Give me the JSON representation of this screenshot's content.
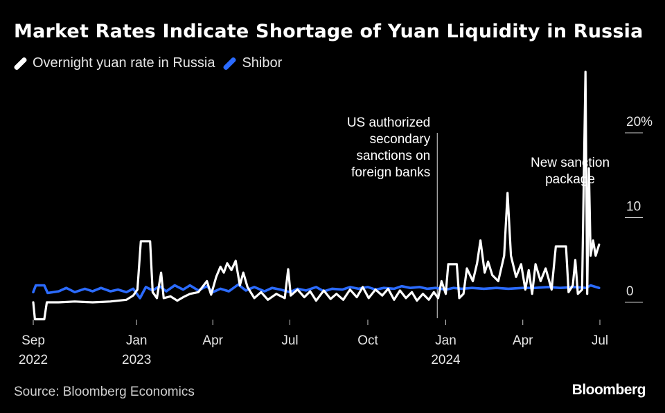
{
  "title": "Market Rates Indicate Shortage of Yuan Liquidity in Russia",
  "source": "Source: Bloomberg Economics",
  "brand": "Bloomberg",
  "colors": {
    "background": "#000000",
    "overnight": "#ffffff",
    "shibor": "#2b6bff",
    "axis": "#cccccc"
  },
  "chart_data": {
    "type": "line",
    "title": "Market Rates Indicate Shortage of Yuan Liquidity in Russia",
    "ylim": [
      -2,
      27
    ],
    "y_ticks": [
      {
        "value": 0,
        "label": "0"
      },
      {
        "value": 10,
        "label": "10"
      },
      {
        "value": 20,
        "label": "20%"
      }
    ],
    "x_ticks": [
      {
        "date": "2022-09-01",
        "label": "Sep",
        "year": "2022"
      },
      {
        "date": "2023-01-01",
        "label": "Jan",
        "year": "2023"
      },
      {
        "date": "2023-04-01",
        "label": "Apr",
        "year": ""
      },
      {
        "date": "2023-07-01",
        "label": "Jul",
        "year": ""
      },
      {
        "date": "2023-10-01",
        "label": "Oct",
        "year": ""
      },
      {
        "date": "2024-01-01",
        "label": "Jan",
        "year": "2024"
      },
      {
        "date": "2024-04-01",
        "label": "Apr",
        "year": ""
      },
      {
        "date": "2024-07-01",
        "label": "Jul",
        "year": ""
      }
    ],
    "xlim": [
      "2022-09-01",
      "2024-07-01"
    ],
    "annotations": [
      {
        "date": "2023-12-22",
        "lines": [
          "US authorized",
          "secondary",
          "sanctions on",
          "foreign banks"
        ],
        "has_line": true
      },
      {
        "date": "2024-06-12",
        "lines": [
          "New sanction",
          "package"
        ],
        "has_line": false
      }
    ],
    "series": [
      {
        "name": "Overnight yuan rate in Russia",
        "color": "#ffffff",
        "points": [
          [
            "2022-09-01",
            0.0
          ],
          [
            "2022-09-03",
            -2.0
          ],
          [
            "2022-09-14",
            -2.0
          ],
          [
            "2022-09-17",
            0.0
          ],
          [
            "2022-10-01",
            0.0
          ],
          [
            "2022-10-20",
            0.1
          ],
          [
            "2022-11-10",
            0.0
          ],
          [
            "2022-12-01",
            0.1
          ],
          [
            "2022-12-20",
            0.3
          ],
          [
            "2022-12-28",
            0.8
          ],
          [
            "2023-01-02",
            1.5
          ],
          [
            "2023-01-06",
            7.2
          ],
          [
            "2023-01-17",
            7.2
          ],
          [
            "2023-01-20",
            1.2
          ],
          [
            "2023-01-25",
            0.5
          ],
          [
            "2023-01-30",
            3.5
          ],
          [
            "2023-02-02",
            0.5
          ],
          [
            "2023-02-10",
            0.7
          ],
          [
            "2023-02-18",
            0.2
          ],
          [
            "2023-02-25",
            0.6
          ],
          [
            "2023-03-05",
            1.0
          ],
          [
            "2023-03-15",
            1.2
          ],
          [
            "2023-03-25",
            2.5
          ],
          [
            "2023-03-30",
            0.9
          ],
          [
            "2023-04-05",
            3.0
          ],
          [
            "2023-04-10",
            4.2
          ],
          [
            "2023-04-14",
            3.5
          ],
          [
            "2023-04-18",
            4.6
          ],
          [
            "2023-04-23",
            3.8
          ],
          [
            "2023-04-28",
            4.9
          ],
          [
            "2023-05-03",
            2.0
          ],
          [
            "2023-05-07",
            3.5
          ],
          [
            "2023-05-12",
            1.8
          ],
          [
            "2023-05-20",
            0.5
          ],
          [
            "2023-05-28",
            1.2
          ],
          [
            "2023-06-05",
            0.3
          ],
          [
            "2023-06-15",
            1.0
          ],
          [
            "2023-06-25",
            0.5
          ],
          [
            "2023-06-29",
            3.9
          ],
          [
            "2023-07-02",
            0.8
          ],
          [
            "2023-07-10",
            1.5
          ],
          [
            "2023-07-18",
            0.6
          ],
          [
            "2023-07-25",
            1.3
          ],
          [
            "2023-08-01",
            0.2
          ],
          [
            "2023-08-10",
            1.4
          ],
          [
            "2023-08-18",
            0.4
          ],
          [
            "2023-08-25",
            1.0
          ],
          [
            "2023-09-02",
            0.3
          ],
          [
            "2023-09-10",
            1.5
          ],
          [
            "2023-09-18",
            0.6
          ],
          [
            "2023-09-25",
            1.8
          ],
          [
            "2023-10-02",
            0.5
          ],
          [
            "2023-10-10",
            1.5
          ],
          [
            "2023-10-18",
            0.8
          ],
          [
            "2023-10-25",
            1.6
          ],
          [
            "2023-11-01",
            0.3
          ],
          [
            "2023-11-08",
            1.4
          ],
          [
            "2023-11-15",
            0.5
          ],
          [
            "2023-11-22",
            1.2
          ],
          [
            "2023-11-28",
            0.2
          ],
          [
            "2023-12-05",
            1.0
          ],
          [
            "2023-12-12",
            0.3
          ],
          [
            "2023-12-18",
            1.2
          ],
          [
            "2023-12-23",
            0.5
          ],
          [
            "2023-12-27",
            2.5
          ],
          [
            "2024-01-01",
            1.0
          ],
          [
            "2024-01-04",
            4.5
          ],
          [
            "2024-01-14",
            4.5
          ],
          [
            "2024-01-17",
            0.5
          ],
          [
            "2024-01-22",
            1.0
          ],
          [
            "2024-01-26",
            4.0
          ],
          [
            "2024-02-02",
            2.5
          ],
          [
            "2024-02-07",
            4.6
          ],
          [
            "2024-02-11",
            7.3
          ],
          [
            "2024-02-16",
            3.5
          ],
          [
            "2024-02-20",
            4.8
          ],
          [
            "2024-02-25",
            3.2
          ],
          [
            "2024-03-03",
            2.5
          ],
          [
            "2024-03-10",
            5.5
          ],
          [
            "2024-03-14",
            12.9
          ],
          [
            "2024-03-18",
            5.5
          ],
          [
            "2024-03-24",
            3.0
          ],
          [
            "2024-03-30",
            4.5
          ],
          [
            "2024-04-04",
            1.5
          ],
          [
            "2024-04-08",
            3.8
          ],
          [
            "2024-04-12",
            1.0
          ],
          [
            "2024-04-16",
            4.5
          ],
          [
            "2024-04-22",
            2.5
          ],
          [
            "2024-04-28",
            4.0
          ],
          [
            "2024-05-05",
            1.5
          ],
          [
            "2024-05-10",
            6.6
          ],
          [
            "2024-05-22",
            6.6
          ],
          [
            "2024-05-25",
            1.2
          ],
          [
            "2024-05-30",
            2.0
          ],
          [
            "2024-06-02",
            5.0
          ],
          [
            "2024-06-05",
            1.0
          ],
          [
            "2024-06-10",
            1.5
          ],
          [
            "2024-06-14",
            27.2
          ],
          [
            "2024-06-16",
            1.0
          ],
          [
            "2024-06-18",
            15.8
          ],
          [
            "2024-06-20",
            5.5
          ],
          [
            "2024-06-23",
            7.3
          ],
          [
            "2024-06-26",
            5.5
          ],
          [
            "2024-06-30",
            6.8
          ]
        ]
      },
      {
        "name": "Shibor",
        "color": "#2b6bff",
        "points": [
          [
            "2022-09-01",
            1.2
          ],
          [
            "2022-09-04",
            2.0
          ],
          [
            "2022-09-14",
            2.0
          ],
          [
            "2022-09-18",
            1.1
          ],
          [
            "2022-10-01",
            1.3
          ],
          [
            "2022-10-10",
            1.7
          ],
          [
            "2022-10-20",
            1.2
          ],
          [
            "2022-11-01",
            1.6
          ],
          [
            "2022-11-10",
            1.3
          ],
          [
            "2022-11-20",
            1.7
          ],
          [
            "2022-12-01",
            1.3
          ],
          [
            "2022-12-10",
            1.5
          ],
          [
            "2022-12-20",
            1.2
          ],
          [
            "2022-12-28",
            1.6
          ],
          [
            "2023-01-05",
            0.5
          ],
          [
            "2023-01-12",
            1.8
          ],
          [
            "2023-01-20",
            1.4
          ],
          [
            "2023-01-28",
            1.9
          ],
          [
            "2023-02-05",
            1.3
          ],
          [
            "2023-02-15",
            2.0
          ],
          [
            "2023-02-25",
            1.5
          ],
          [
            "2023-03-05",
            2.0
          ],
          [
            "2023-03-15",
            1.4
          ],
          [
            "2023-03-25",
            1.9
          ],
          [
            "2023-04-01",
            1.2
          ],
          [
            "2023-04-10",
            1.6
          ],
          [
            "2023-04-20",
            1.3
          ],
          [
            "2023-05-01",
            2.1
          ],
          [
            "2023-05-10",
            1.4
          ],
          [
            "2023-05-20",
            1.8
          ],
          [
            "2023-06-01",
            1.3
          ],
          [
            "2023-06-10",
            1.7
          ],
          [
            "2023-06-20",
            1.5
          ],
          [
            "2023-07-01",
            1.2
          ],
          [
            "2023-07-10",
            1.6
          ],
          [
            "2023-07-20",
            1.4
          ],
          [
            "2023-08-01",
            1.8
          ],
          [
            "2023-08-10",
            1.3
          ],
          [
            "2023-08-20",
            1.6
          ],
          [
            "2023-09-01",
            1.5
          ],
          [
            "2023-09-10",
            1.8
          ],
          [
            "2023-09-20",
            1.6
          ],
          [
            "2023-10-01",
            1.8
          ],
          [
            "2023-10-10",
            1.5
          ],
          [
            "2023-10-20",
            1.7
          ],
          [
            "2023-11-01",
            1.6
          ],
          [
            "2023-11-10",
            1.9
          ],
          [
            "2023-11-20",
            1.7
          ],
          [
            "2023-12-01",
            1.8
          ],
          [
            "2023-12-10",
            1.6
          ],
          [
            "2023-12-20",
            1.7
          ],
          [
            "2024-01-01",
            1.5
          ],
          [
            "2024-01-10",
            1.7
          ],
          [
            "2024-01-20",
            1.6
          ],
          [
            "2024-02-01",
            1.7
          ],
          [
            "2024-02-15",
            1.6
          ],
          [
            "2024-03-01",
            1.7
          ],
          [
            "2024-03-15",
            1.6
          ],
          [
            "2024-04-01",
            1.7
          ],
          [
            "2024-04-15",
            1.7
          ],
          [
            "2024-05-01",
            1.8
          ],
          [
            "2024-05-15",
            1.7
          ],
          [
            "2024-06-01",
            1.8
          ],
          [
            "2024-06-15",
            1.7
          ],
          [
            "2024-06-20",
            2.0
          ],
          [
            "2024-06-30",
            1.7
          ]
        ]
      }
    ]
  }
}
